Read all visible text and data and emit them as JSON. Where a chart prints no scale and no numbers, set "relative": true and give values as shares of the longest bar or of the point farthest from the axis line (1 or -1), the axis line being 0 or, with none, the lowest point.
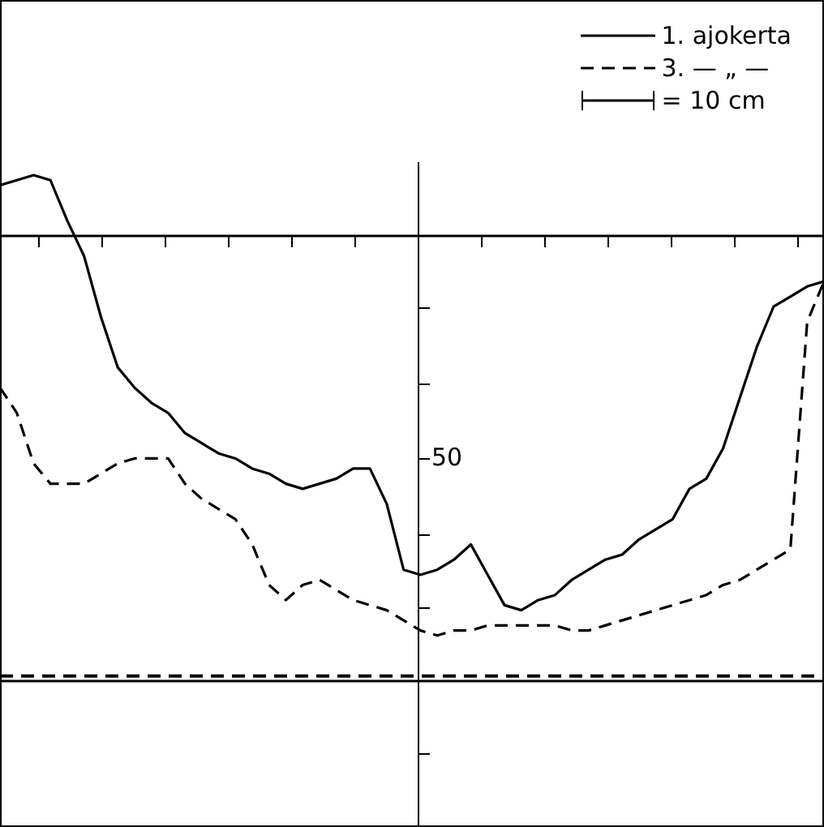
{
  "chart_data": {
    "type": "line",
    "relative": true,
    "legend": "top right",
    "marker": "none",
    "grid": false,
    "categories": [
      null,
      null,
      null,
      null,
      null,
      null,
      null,
      null,
      null,
      null,
      null,
      null,
      null,
      null,
      null,
      null,
      null,
      null,
      null,
      null,
      null,
      null,
      null,
      null,
      null,
      null,
      null,
      null,
      null,
      null,
      null,
      null,
      null,
      null,
      null,
      null,
      null,
      null,
      null,
      null,
      null,
      null,
      null,
      null,
      null,
      null,
      null,
      null,
      null,
      null
    ],
    "series": [
      {
        "name": "1. ajokerta",
        "color": "#000000",
        "line_style": "solid",
        "values": [
          0.98,
          0.99,
          1.0,
          0.99,
          0.91,
          0.84,
          0.72,
          0.62,
          0.58,
          0.55,
          0.53,
          0.49,
          0.47,
          0.45,
          0.44,
          0.42,
          0.41,
          0.39,
          0.38,
          0.39,
          0.4,
          0.42,
          0.42,
          0.35,
          0.22,
          0.21,
          0.22,
          0.24,
          0.27,
          0.21,
          0.15,
          0.14,
          0.16,
          0.17,
          0.2,
          0.22,
          0.24,
          0.25,
          0.28,
          0.3,
          0.32,
          0.38,
          0.4,
          0.46,
          0.56,
          0.66,
          0.74,
          0.76,
          0.78,
          0.79
        ]
      },
      {
        "name": "3. — „ —",
        "color": "#000000",
        "line_style": "dashed",
        "values": [
          0.58,
          0.53,
          0.43,
          0.39,
          0.39,
          0.39,
          0.41,
          0.43,
          0.44,
          0.44,
          0.44,
          0.39,
          0.36,
          0.34,
          0.32,
          0.27,
          0.19,
          0.16,
          0.19,
          0.2,
          0.18,
          0.16,
          0.15,
          0.14,
          0.12,
          0.1,
          0.09,
          0.1,
          0.1,
          0.11,
          0.11,
          0.11,
          0.11,
          0.11,
          0.1,
          0.1,
          0.11,
          0.12,
          0.13,
          0.14,
          0.15,
          0.16,
          0.17,
          0.19,
          0.2,
          0.22,
          0.24,
          0.26,
          0.71,
          0.79
        ]
      }
    ],
    "ref_lines": [
      {
        "axis": "y",
        "value": 0,
        "color": "#000000",
        "line_style": "solid"
      },
      {
        "axis": "y",
        "value": 0.88,
        "color": "#000000",
        "line_style": "solid"
      },
      {
        "axis": "y",
        "value": 0.01,
        "color": "#000000",
        "line_style": "dashed"
      }
    ],
    "annotations": [
      "50",
      "= 10 cm"
    ]
  }
}
